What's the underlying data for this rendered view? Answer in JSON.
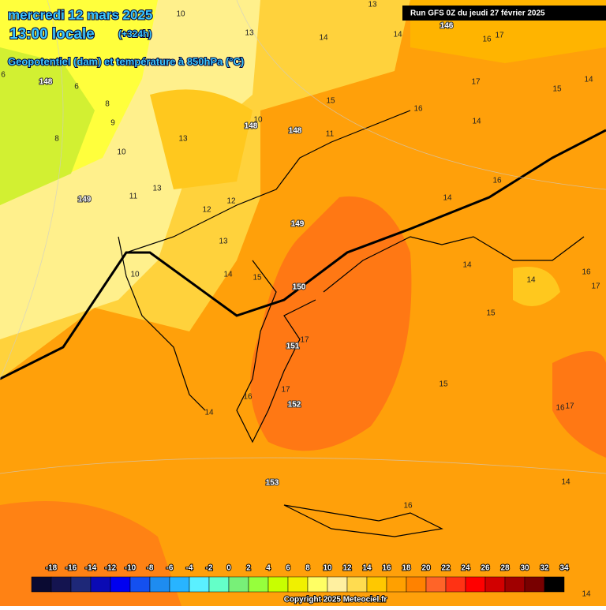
{
  "header": {
    "date": "mercredi 12 mars 2025",
    "time": "13:00 locale",
    "lead": "(+324h)",
    "subtitle": "Geopotentiel (dam) et température à 850hPa (°C)",
    "run": "Run GFS 0Z du jeudi 27 février 2025"
  },
  "map_labels": [
    "13",
    "10",
    "13",
    "14",
    "14",
    "146",
    "16",
    "17",
    "6",
    "148",
    "6",
    "17",
    "15",
    "14",
    "8",
    "15",
    "16",
    "9",
    "10",
    "148",
    "148",
    "14",
    "8",
    "11",
    "13",
    "10",
    "16",
    "13",
    "11",
    "149",
    "12",
    "12",
    "14",
    "149",
    "13",
    "10",
    "14",
    "15",
    "14",
    "14",
    "16",
    "17",
    "150",
    "15",
    "17",
    "151",
    "15",
    "17",
    "16",
    "152",
    "16",
    "17",
    "14",
    "153",
    "14",
    "16",
    "14"
  ],
  "scale": {
    "ticks": [
      -18,
      -16,
      -14,
      -12,
      -10,
      -8,
      -6,
      -4,
      -2,
      0,
      2,
      4,
      6,
      8,
      10,
      12,
      14,
      16,
      18,
      20,
      22,
      24,
      26,
      28,
      30,
      32,
      34
    ],
    "colors": [
      "#0a0a32",
      "#141450",
      "#1e2878",
      "#0a0ab4",
      "#0000f0",
      "#1450f0",
      "#1e8cf0",
      "#28b4ff",
      "#5af0ff",
      "#64ffc8",
      "#78f078",
      "#96ff3c",
      "#c8ff00",
      "#f0f000",
      "#ffff64",
      "#fff0a0",
      "#ffdc50",
      "#ffc800",
      "#ffa000",
      "#ff8200",
      "#ff6428",
      "#ff3214",
      "#ff0000",
      "#d20000",
      "#a00000",
      "#780000",
      "#000000"
    ]
  },
  "footer": {
    "copyright": "Copyright 2025 Meteociel.fr"
  }
}
